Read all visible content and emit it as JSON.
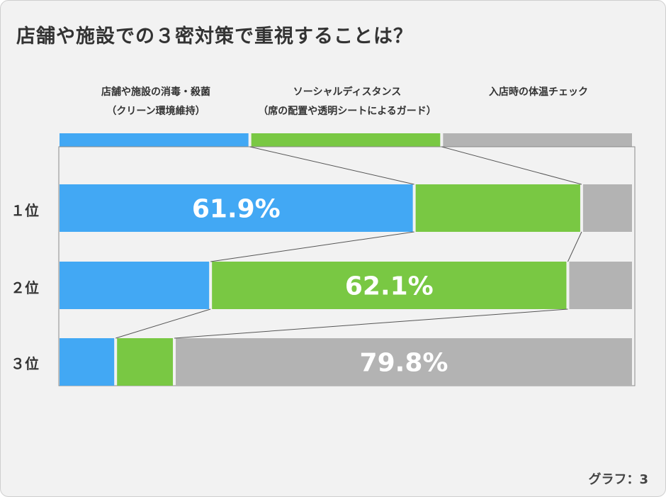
{
  "title": "店舗や施設での３密対策で重視することは？",
  "caption": "グラフ：3",
  "colors": {
    "blue": "#42a8f4",
    "green": "#79c843",
    "gray": "#b3b3b3",
    "connector": "#555555"
  },
  "chart_data": {
    "type": "bar",
    "orientation": "horizontal-stacked-100",
    "title": "店舗や施設での３密対策で重視することは？",
    "legend_position": "top",
    "categories": [
      {
        "line1": "店舗や施設の消毒・殺菌",
        "line2": "（クリーン環境維持）",
        "color": "#42a8f4"
      },
      {
        "line1": "ソーシャルディスタンス",
        "line2": "（席の配置や透明シートによるガード）",
        "color": "#79c843"
      },
      {
        "line1": "入店時の体温チェック",
        "line2": "",
        "color": "#b3b3b3"
      }
    ],
    "rows": [
      {
        "label": "１位",
        "values": [
          61.9,
          29.1,
          9.0
        ],
        "value_label": "61.9%",
        "label_segment": 0
      },
      {
        "label": "２位",
        "values": [
          26.5,
          62.1,
          11.4
        ],
        "value_label": "62.1%",
        "label_segment": 1
      },
      {
        "label": "３位",
        "values": [
          10.0,
          10.2,
          79.8
        ],
        "value_label": "79.8%",
        "label_segment": 2
      }
    ]
  }
}
